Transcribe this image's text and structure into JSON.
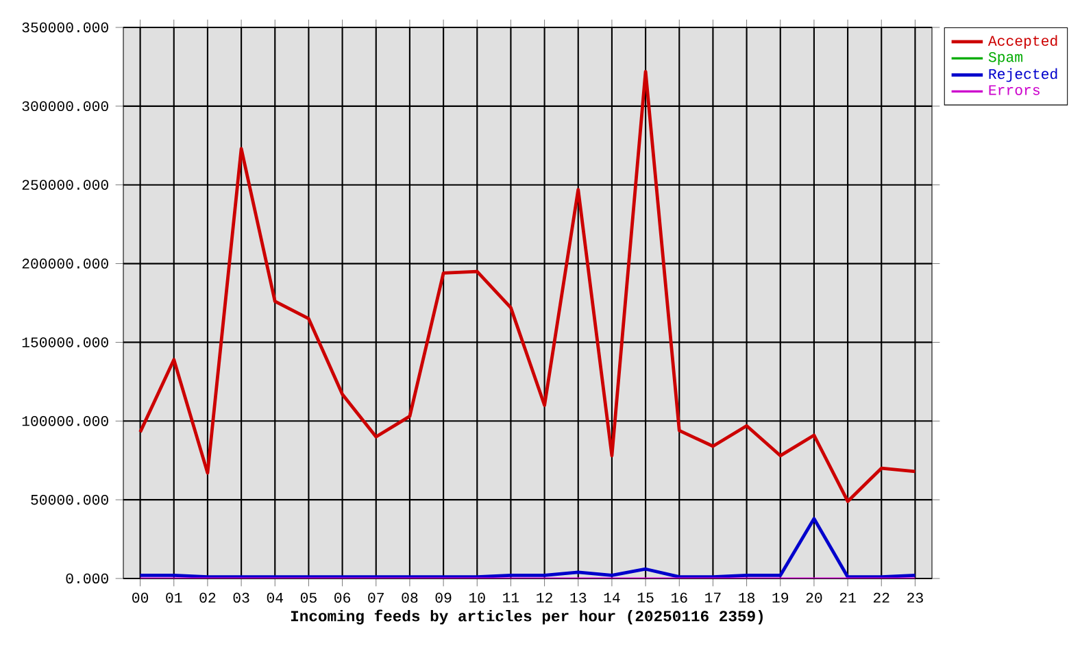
{
  "chart_data": {
    "type": "line",
    "xlabel": "Incoming feeds by articles per hour (20250116 2359)",
    "categories": [
      "00",
      "01",
      "02",
      "03",
      "04",
      "05",
      "06",
      "07",
      "08",
      "09",
      "10",
      "11",
      "12",
      "13",
      "14",
      "15",
      "16",
      "17",
      "18",
      "19",
      "20",
      "21",
      "22",
      "23"
    ],
    "series": [
      {
        "name": "Accepted",
        "color": "#cc0000",
        "values": [
          93000,
          139000,
          67000,
          273000,
          176000,
          165000,
          117000,
          90000,
          103000,
          194000,
          195000,
          172000,
          110000,
          247000,
          78000,
          322000,
          94000,
          84000,
          97000,
          78000,
          91000,
          49000,
          70000,
          68000
        ]
      },
      {
        "name": "Spam",
        "color": "#00aa00",
        "values": [
          null,
          null,
          null,
          null,
          null,
          null,
          null,
          null,
          null,
          null,
          null,
          null,
          null,
          null,
          null,
          null,
          null,
          null,
          null,
          null,
          null,
          null,
          null,
          null
        ]
      },
      {
        "name": "Rejected",
        "color": "#0000cc",
        "values": [
          2000,
          2000,
          1000,
          1000,
          1000,
          1000,
          1000,
          1000,
          1000,
          1000,
          1000,
          2000,
          2000,
          4000,
          2000,
          6000,
          1000,
          1000,
          2000,
          2000,
          38000,
          1000,
          1000,
          2000
        ]
      },
      {
        "name": "Errors",
        "color": "#cc00cc",
        "values": [
          0,
          0,
          0,
          0,
          0,
          0,
          0,
          0,
          0,
          0,
          0,
          0,
          0,
          0,
          0,
          0,
          0,
          0,
          0,
          0,
          0,
          0,
          0,
          0
        ]
      }
    ],
    "ylim": [
      0,
      350000
    ],
    "yticks": [
      {
        "value": 0,
        "label": "0.000"
      },
      {
        "value": 50000,
        "label": "50000.000"
      },
      {
        "value": 100000,
        "label": "100000.000"
      },
      {
        "value": 150000,
        "label": "150000.000"
      },
      {
        "value": 200000,
        "label": "200000.000"
      },
      {
        "value": 250000,
        "label": "250000.000"
      },
      {
        "value": 300000,
        "label": "300000.000"
      },
      {
        "value": 350000,
        "label": "350000.000"
      }
    ],
    "grid": true,
    "legend": "top right",
    "line_style": "solid"
  }
}
